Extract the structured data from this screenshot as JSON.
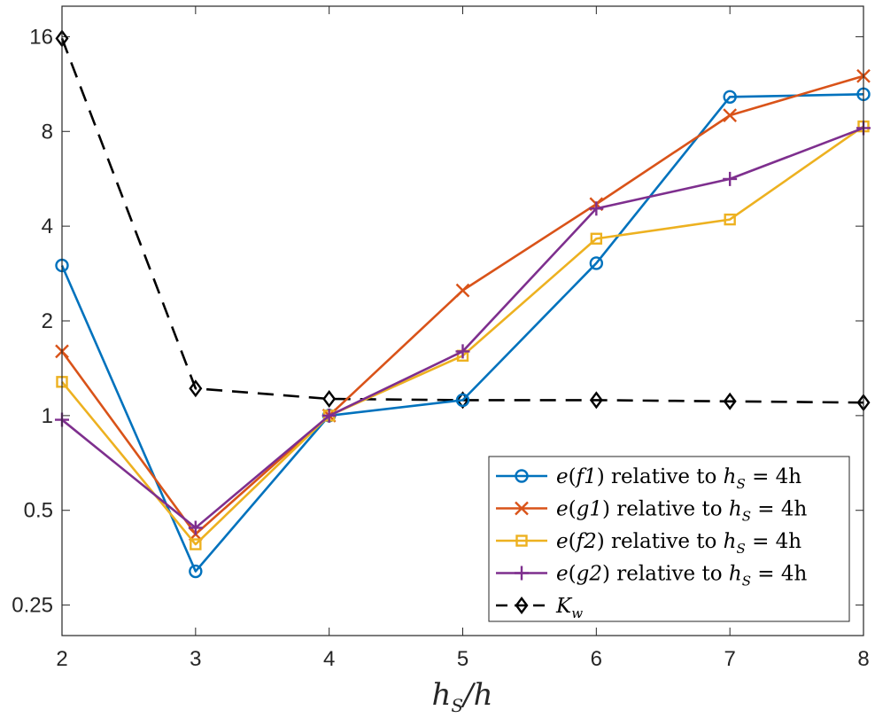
{
  "chart_data": {
    "type": "line",
    "title": "",
    "xlabel": {
      "main": "h",
      "sub": "S",
      "tail": "/h"
    },
    "ylabel": "",
    "yscale": "log2",
    "xlim": [
      2,
      8
    ],
    "ylim": [
      0.2,
      20
    ],
    "grid": false,
    "legend_position": "bottom-right",
    "x": [
      2,
      3,
      4,
      5,
      6,
      7,
      8
    ],
    "x_tick_labels": [
      "2",
      "3",
      "4",
      "5",
      "6",
      "7",
      "8"
    ],
    "y_ticks": [
      0.25,
      0.5,
      1,
      2,
      4,
      8,
      16
    ],
    "y_tick_labels": [
      "0.25",
      "0.5",
      "1",
      "2",
      "4",
      "8",
      "16"
    ],
    "series": [
      {
        "name": "e(f1) relative to h_S = 4h",
        "legend": {
          "fn": "e",
          "arg": "f1",
          "text": "relative to",
          "var": "h",
          "sub": "S",
          "rhs": "= 4h"
        },
        "color": "#0072BD",
        "marker": "circle",
        "dash": "solid",
        "values": [
          3.0,
          0.32,
          1.0,
          1.12,
          3.05,
          10.3,
          10.5
        ]
      },
      {
        "name": "e(g1) relative to h_S = 4h",
        "legend": {
          "fn": "e",
          "arg": "g1",
          "text": "relative to",
          "var": "h",
          "sub": "S",
          "rhs": "= 4h"
        },
        "color": "#D95319",
        "marker": "x",
        "dash": "solid",
        "values": [
          1.6,
          0.42,
          1.0,
          2.5,
          4.7,
          9.0,
          12.0
        ]
      },
      {
        "name": "e(f2) relative to h_S = 4h",
        "legend": {
          "fn": "e",
          "arg": "f2",
          "text": "relative to",
          "var": "h",
          "sub": "S",
          "rhs": "= 4h"
        },
        "color": "#EDB120",
        "marker": "square",
        "dash": "solid",
        "values": [
          1.28,
          0.39,
          1.0,
          1.55,
          3.65,
          4.2,
          8.3
        ]
      },
      {
        "name": "e(g2) relative to h_S = 4h",
        "legend": {
          "fn": "e",
          "arg": "g2",
          "text": "relative to",
          "var": "h",
          "sub": "S",
          "rhs": "= 4h"
        },
        "color": "#7E2F8E",
        "marker": "plus",
        "dash": "solid",
        "values": [
          0.97,
          0.44,
          1.0,
          1.6,
          4.55,
          5.65,
          8.2
        ]
      },
      {
        "name": "K_w",
        "legend": {
          "var": "K",
          "sub": "w"
        },
        "color": "#000000",
        "marker": "diamond",
        "dash": "dashed",
        "values": [
          15.8,
          1.22,
          1.13,
          1.12,
          1.12,
          1.11,
          1.1
        ]
      }
    ]
  }
}
